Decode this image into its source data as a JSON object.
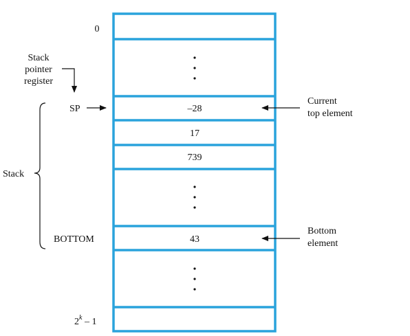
{
  "memory": {
    "top_address": "0",
    "bottom_address_base": "2",
    "bottom_address_exp": "k",
    "bottom_address_tail": " – 1",
    "cells": {
      "sp_value": "–28",
      "second_value": "17",
      "third_value": "739",
      "bottom_value": "43"
    }
  },
  "labels": {
    "stack_pointer_line1": "Stack",
    "stack_pointer_line2": "pointer",
    "stack_pointer_line3": "register",
    "sp": "SP",
    "bottom": "BOTTOM",
    "stack": "Stack",
    "current_top_line1": "Current",
    "current_top_line2": "top element",
    "bottom_element_line1": "Bottom",
    "bottom_element_line2": "element"
  }
}
